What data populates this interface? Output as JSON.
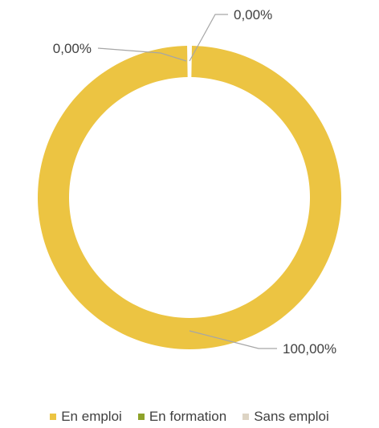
{
  "chart_data": {
    "type": "pie",
    "donut": true,
    "legend_position": "bottom",
    "series": [
      {
        "name": "En emploi",
        "value": 100.0,
        "label": "100,00%",
        "color": "#ECC442"
      },
      {
        "name": "En formation",
        "value": 0.0,
        "label": "0,00%",
        "color": "#8EA22A"
      },
      {
        "name": "Sans emploi",
        "value": 0.0,
        "label": "0,00%",
        "color": "#DDD4C4"
      }
    ]
  }
}
